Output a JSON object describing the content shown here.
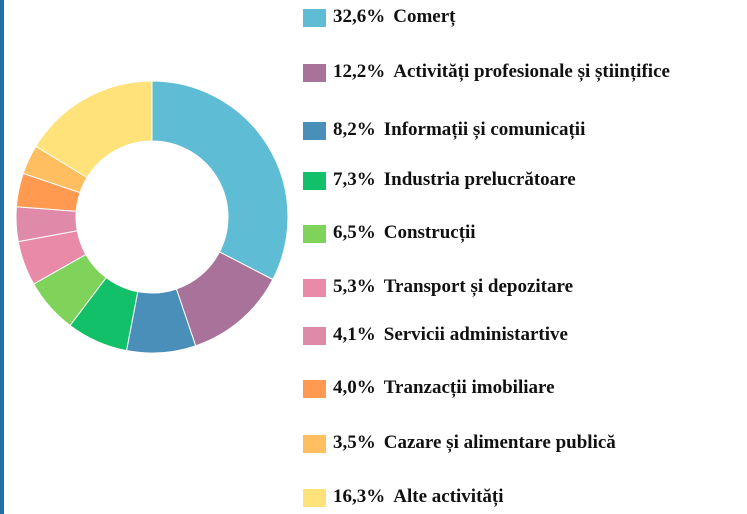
{
  "chart_data": {
    "type": "donut",
    "categories": [
      "Comerț",
      "Activități profesionale și științifice",
      "Informații și comunicații",
      "Industria prelucrătoare",
      "Construcții",
      "Transport și depozitare",
      "Servicii administartive",
      "Tranzacții imobiliare",
      "Cazare și alimentare publică",
      "Alte activități"
    ],
    "values": [
      32.6,
      12.2,
      8.2,
      7.3,
      6.5,
      5.3,
      4.1,
      4.0,
      3.5,
      16.3
    ],
    "value_labels": [
      "32,6%",
      "12,2%",
      "8,2%",
      "7,3%",
      "6,5%",
      "5,3%",
      "4,1%",
      "4,0%",
      "3,5%",
      "16,3%"
    ],
    "colors": [
      "#5ebcd4",
      "#a8729a",
      "#4a8fba",
      "#13c06a",
      "#7fd35a",
      "#e88aa8",
      "#e08aaa",
      "#ff9a50",
      "#ffbe60",
      "#ffe27a"
    ],
    "legend": "right"
  }
}
